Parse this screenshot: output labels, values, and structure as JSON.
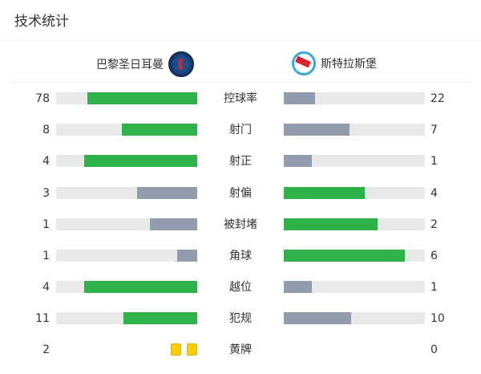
{
  "title": "技术统计",
  "home": {
    "name": "巴黎圣日耳曼",
    "logo": "psg-crest-icon"
  },
  "away": {
    "name": "斯特拉斯堡",
    "logo": "strasbourg-crest-icon"
  },
  "colors": {
    "leader": "#2db34a",
    "trailer": "#939cad",
    "track": "#e9e9e9",
    "card": "#ffcc00"
  },
  "stats": [
    {
      "label": "控球率",
      "home": "78",
      "away": "22"
    },
    {
      "label": "射门",
      "home": "8",
      "away": "7"
    },
    {
      "label": "射正",
      "home": "4",
      "away": "1"
    },
    {
      "label": "射偏",
      "home": "3",
      "away": "4"
    },
    {
      "label": "被封堵",
      "home": "1",
      "away": "2"
    },
    {
      "label": "角球",
      "home": "1",
      "away": "6"
    },
    {
      "label": "越位",
      "home": "4",
      "away": "1"
    },
    {
      "label": "犯规",
      "home": "11",
      "away": "10"
    }
  ],
  "yellow": {
    "label": "黄牌",
    "home": "2",
    "away": "0"
  }
}
